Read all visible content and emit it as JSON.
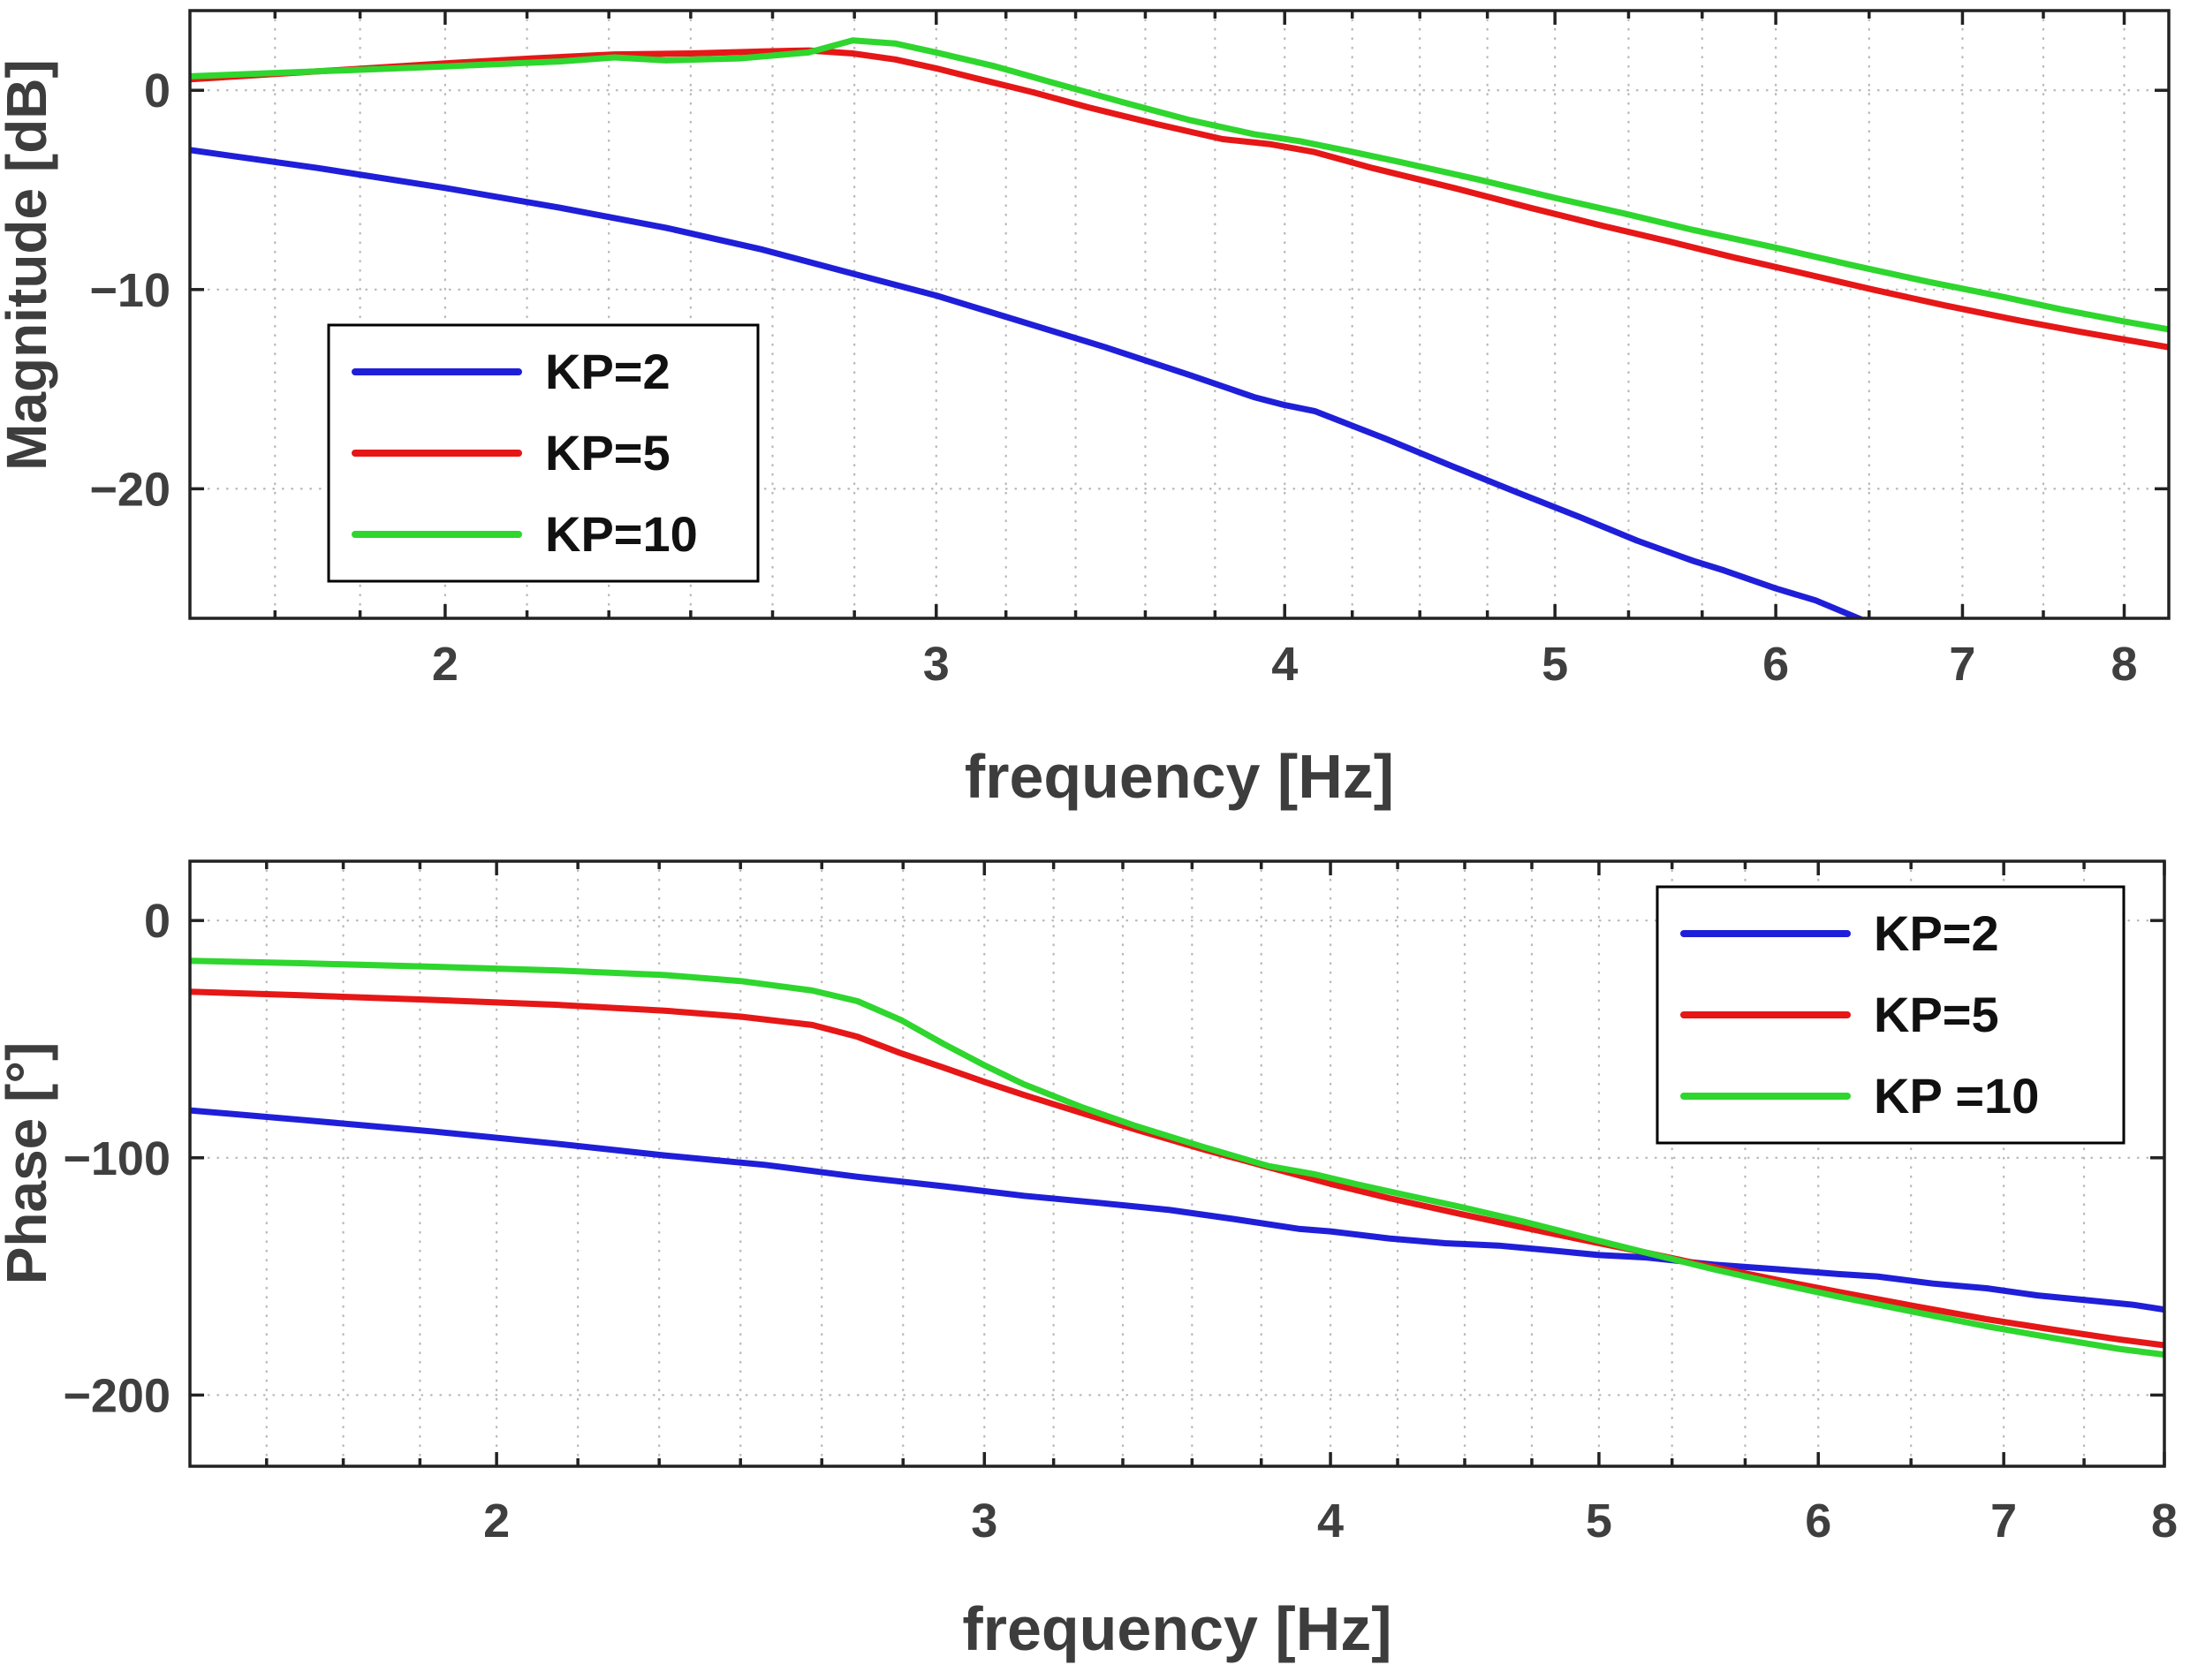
{
  "figure": {
    "background": "#ffffff",
    "description": "Bode plot: magnitude and phase responses for three proportional gains"
  },
  "style": {
    "grid_color": "#b9b9b9",
    "axis_color": "#222222",
    "text_color": "#3d3d3d",
    "plot_background": "#ffffff",
    "legend_border": "#000000",
    "series_blue": "#1f1fd9",
    "series_red": "#e61717",
    "series_green": "#2ed62e"
  },
  "chart_data": [
    {
      "type": "line",
      "title": "",
      "xlabel": "frequency [Hz]",
      "ylabel": "Magnitude [dB]",
      "x_scale": "log",
      "grid": true,
      "xlim": [
        1.62,
        8.3
      ],
      "ylim": [
        -26.5,
        4
      ],
      "xticks": [
        2,
        3,
        4,
        5,
        6,
        7,
        8
      ],
      "xtick_labels": [
        "2",
        "3",
        "4",
        "5",
        "6",
        "7",
        "8"
      ],
      "yticks": [
        0,
        -10,
        -20
      ],
      "ytick_labels": [
        "0",
        "−10",
        "−20"
      ],
      "legend": {
        "position": "upper-left",
        "labels": [
          "KP=2",
          "KP=5",
          "KP=10"
        ]
      },
      "series": [
        {
          "name": "KP=2",
          "color": "#1f1fd9",
          "x": [
            1.62,
            1.8,
            2.0,
            2.2,
            2.4,
            2.6,
            2.8,
            3.0,
            3.2,
            3.45,
            3.7,
            3.9,
            4.0,
            4.1,
            4.35,
            4.6,
            4.85,
            5.1,
            5.35,
            5.6,
            5.75,
            6.0,
            6.2,
            6.45
          ],
          "y": [
            -3.0,
            -3.9,
            -4.9,
            -5.9,
            -6.9,
            -8.0,
            -9.2,
            -10.3,
            -11.5,
            -12.9,
            -14.3,
            -15.4,
            -15.8,
            -16.1,
            -17.5,
            -18.9,
            -20.2,
            -21.4,
            -22.6,
            -23.6,
            -24.1,
            -25.0,
            -25.6,
            -26.6
          ]
        },
        {
          "name": "KP=5",
          "color": "#e61717",
          "x": [
            1.62,
            1.8,
            2.0,
            2.15,
            2.3,
            2.45,
            2.6,
            2.7,
            2.8,
            2.9,
            3.0,
            3.1,
            3.25,
            3.4,
            3.6,
            3.8,
            3.95,
            4.1,
            4.3,
            4.6,
            4.9,
            5.2,
            5.5,
            5.8,
            6.1,
            6.5,
            6.9,
            7.3,
            7.7,
            8.3
          ],
          "y": [
            0.55,
            0.95,
            1.35,
            1.6,
            1.8,
            1.85,
            1.95,
            2.0,
            1.85,
            1.55,
            1.1,
            0.6,
            -0.1,
            -0.85,
            -1.7,
            -2.45,
            -2.7,
            -3.1,
            -3.9,
            -4.9,
            -5.9,
            -6.8,
            -7.6,
            -8.4,
            -9.1,
            -10.0,
            -10.8,
            -11.5,
            -12.1,
            -12.9
          ]
        },
        {
          "name": "KP=10",
          "color": "#2ed62e",
          "x": [
            1.62,
            1.8,
            2.0,
            2.2,
            2.3,
            2.4,
            2.55,
            2.7,
            2.8,
            2.9,
            3.0,
            3.15,
            3.3,
            3.5,
            3.7,
            3.9,
            4.05,
            4.2,
            4.4,
            4.7,
            5.0,
            5.3,
            5.6,
            6.0,
            6.4,
            6.8,
            7.2,
            7.6,
            8.0,
            8.3
          ],
          "y": [
            0.7,
            0.95,
            1.2,
            1.45,
            1.65,
            1.5,
            1.6,
            1.9,
            2.5,
            2.35,
            1.9,
            1.2,
            0.4,
            -0.6,
            -1.5,
            -2.2,
            -2.55,
            -3.0,
            -3.6,
            -4.5,
            -5.4,
            -6.2,
            -7.0,
            -7.9,
            -8.8,
            -9.6,
            -10.3,
            -11.0,
            -11.6,
            -12.0
          ]
        }
      ]
    },
    {
      "type": "line",
      "title": "",
      "xlabel": "frequency [Hz]",
      "ylabel": "Phase [°]",
      "x_scale": "log",
      "grid": true,
      "xlim": [
        1.55,
        8.0
      ],
      "ylim": [
        -230,
        25
      ],
      "xticks": [
        2,
        3,
        4,
        5,
        6,
        7,
        8
      ],
      "xtick_labels": [
        "2",
        "3",
        "4",
        "5",
        "6",
        "7",
        "8"
      ],
      "yticks": [
        0,
        -100,
        -200
      ],
      "ytick_labels": [
        "0",
        "−100",
        "−200"
      ],
      "legend": {
        "position": "upper-right",
        "labels": [
          "KP=2",
          "KP=5",
          "KP =10"
        ]
      },
      "series": [
        {
          "name": "KP=2",
          "color": "#1f1fd9",
          "x": [
            1.55,
            1.7,
            1.9,
            2.1,
            2.3,
            2.5,
            2.7,
            2.9,
            3.1,
            3.3,
            3.5,
            3.7,
            3.9,
            4.0,
            4.2,
            4.4,
            4.6,
            4.8,
            5.0,
            5.2,
            5.5,
            5.8,
            6.1,
            6.3,
            6.6,
            6.9,
            7.2,
            7.5,
            7.8,
            8.0
          ],
          "y": [
            -80,
            -84,
            -89,
            -94,
            -99,
            -103,
            -108,
            -112,
            -116,
            -119,
            -122,
            -126,
            -130,
            -131,
            -134,
            -136,
            -137,
            -139,
            -141,
            -142,
            -145,
            -147,
            -149,
            -150,
            -153,
            -155,
            -158,
            -160,
            -162,
            -164
          ]
        },
        {
          "name": "KP=5",
          "color": "#e61717",
          "x": [
            1.55,
            1.7,
            1.9,
            2.1,
            2.3,
            2.45,
            2.6,
            2.7,
            2.8,
            2.9,
            3.0,
            3.1,
            3.25,
            3.4,
            3.6,
            3.8,
            4.0,
            4.2,
            4.45,
            4.7,
            5.0,
            5.2,
            5.5,
            5.8,
            6.1,
            6.5,
            6.9,
            7.3,
            7.7,
            8.0
          ],
          "y": [
            -30,
            -31.5,
            -33.5,
            -35.5,
            -38,
            -40.5,
            -44,
            -49,
            -56,
            -62,
            -68,
            -73.5,
            -81,
            -88,
            -96.5,
            -104,
            -111,
            -117,
            -123.5,
            -129.5,
            -136,
            -140,
            -146,
            -151.5,
            -156.5,
            -162.5,
            -168,
            -172.5,
            -176.5,
            -179
          ]
        },
        {
          "name": "KP=10",
          "color": "#2ed62e",
          "x": [
            1.55,
            1.7,
            1.9,
            2.1,
            2.3,
            2.45,
            2.6,
            2.7,
            2.8,
            2.9,
            3.0,
            3.1,
            3.25,
            3.4,
            3.6,
            3.8,
            3.95,
            4.1,
            4.25,
            4.45,
            4.7,
            5.0,
            5.2,
            5.5,
            5.8,
            6.1,
            6.5,
            6.9,
            7.3,
            7.7,
            8.0
          ],
          "y": [
            -17,
            -18,
            -19.5,
            -21,
            -23,
            -25.5,
            -29.5,
            -34,
            -42,
            -52,
            -61,
            -69,
            -78.5,
            -86.5,
            -95.5,
            -103.5,
            -107,
            -111.5,
            -115.5,
            -120.5,
            -127,
            -135,
            -140,
            -147,
            -153,
            -158.5,
            -165,
            -171,
            -176,
            -180.5,
            -183
          ]
        }
      ]
    }
  ]
}
